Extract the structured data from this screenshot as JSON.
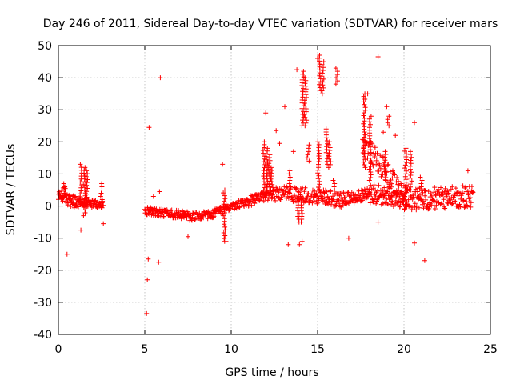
{
  "colors": {
    "series": "#ff0000",
    "axis": "#000000",
    "grid": "#a0a0a0",
    "background": "#ffffff"
  },
  "chart_data": {
    "type": "scatter",
    "title": "Day 246 of 2011, Sidereal Day-to-day VTEC variation (SDTVAR) for receiver mars",
    "xlabel": "GPS time / hours",
    "ylabel": "SDTVAR / TECUs",
    "xlim": [
      0,
      25
    ],
    "ylim": [
      -40,
      50
    ],
    "xticks": [
      0,
      5,
      10,
      15,
      20,
      25
    ],
    "yticks": [
      -40,
      -30,
      -20,
      -10,
      0,
      10,
      20,
      30,
      40,
      50
    ],
    "grid": true,
    "marker": "plus",
    "series": [
      {
        "name": "SDTVAR",
        "bands": [
          {
            "x": [
              0.0,
              0.4
            ],
            "center": [
              2.5,
              3.5
            ],
            "spread": 2.5,
            "n": 20
          },
          {
            "x": [
              0.4,
              1.2
            ],
            "center": [
              2.0,
              1.0
            ],
            "spread": 2.0,
            "n": 40
          },
          {
            "x": [
              1.2,
              2.6
            ],
            "center": [
              1.0,
              0.5
            ],
            "spread": 1.2,
            "n": 60
          },
          {
            "x": [
              5.0,
              7.5
            ],
            "center": [
              -1.5,
              -3.0
            ],
            "spread": 1.3,
            "n": 110
          },
          {
            "x": [
              7.5,
              9.0
            ],
            "center": [
              -3.5,
              -2.5
            ],
            "spread": 1.2,
            "n": 60
          },
          {
            "x": [
              9.0,
              11.0
            ],
            "center": [
              -2.0,
              1.5
            ],
            "spread": 1.2,
            "n": 80
          },
          {
            "x": [
              11.0,
              12.5
            ],
            "center": [
              1.5,
              4.0
            ],
            "spread": 1.6,
            "n": 60
          },
          {
            "x": [
              12.5,
              14.8
            ],
            "center": [
              4.0,
              3.0
            ],
            "spread": 2.5,
            "n": 90
          },
          {
            "x": [
              14.8,
              16.5
            ],
            "center": [
              3.0,
              2.0
            ],
            "spread": 2.5,
            "n": 70
          },
          {
            "x": [
              16.5,
              18.0
            ],
            "center": [
              2.0,
              4.0
            ],
            "spread": 2.0,
            "n": 60
          },
          {
            "x": [
              18.0,
              20.0
            ],
            "center": [
              4.0,
              2.0
            ],
            "spread": 3.0,
            "n": 90
          },
          {
            "x": [
              20.0,
              24.0
            ],
            "center": [
              2.0,
              3.0
            ],
            "spread": 3.5,
            "n": 170
          }
        ],
        "spikes": [
          {
            "x": 0.35,
            "y": [
              3,
              7
            ]
          },
          {
            "x": 1.3,
            "y": [
              2,
              13
            ]
          },
          {
            "x": 1.5,
            "y": [
              -3,
              12
            ]
          },
          {
            "x": 1.65,
            "y": [
              0,
              11
            ]
          },
          {
            "x": 2.5,
            "y": [
              1,
              7
            ]
          },
          {
            "x": 9.6,
            "y": [
              -11,
              5
            ]
          },
          {
            "x": 11.9,
            "y": [
              4,
              20
            ]
          },
          {
            "x": 12.05,
            "y": [
              5,
              18
            ]
          },
          {
            "x": 12.2,
            "y": [
              6,
              16
            ]
          },
          {
            "x": 12.35,
            "y": [
              4,
              12
            ]
          },
          {
            "x": 13.4,
            "y": [
              4,
              11
            ]
          },
          {
            "x": 13.9,
            "y": [
              -5,
              3
            ]
          },
          {
            "x": 14.05,
            "y": [
              -5,
              3
            ]
          },
          {
            "x": 14.15,
            "y": [
              25,
              42
            ]
          },
          {
            "x": 14.3,
            "y": [
              25,
              40
            ]
          },
          {
            "x": 14.45,
            "y": [
              14,
              19
            ]
          },
          {
            "x": 15.05,
            "y": [
              5,
              20
            ]
          },
          {
            "x": 15.15,
            "y": [
              36,
              47
            ]
          },
          {
            "x": 15.3,
            "y": [
              35,
              45
            ]
          },
          {
            "x": 15.55,
            "y": [
              13,
              24
            ]
          },
          {
            "x": 15.7,
            "y": [
              12,
              20
            ]
          },
          {
            "x": 15.95,
            "y": [
              5,
              8
            ]
          },
          {
            "x": 16.1,
            "y": [
              38,
              43
            ]
          },
          {
            "x": 17.7,
            "y": [
              12,
              35
            ]
          },
          {
            "x": 18.05,
            "y": [
              8,
              28
            ]
          },
          {
            "x": 18.9,
            "y": [
              8,
              17
            ]
          },
          {
            "x": 19.1,
            "y": [
              25,
              28
            ]
          },
          {
            "x": 20.1,
            "y": [
              3,
              18
            ]
          },
          {
            "x": 20.4,
            "y": [
              5,
              17
            ]
          },
          {
            "x": 21.0,
            "y": [
              6,
              9
            ]
          }
        ],
        "fan": {
          "x0": 17.6,
          "y0": 20,
          "x1": 20.2,
          "y1": 2,
          "spread": 3.5,
          "n": 90
        },
        "outliers": [
          {
            "x": 0.5,
            "y": -15
          },
          {
            "x": 1.3,
            "y": -7.5
          },
          {
            "x": 2.6,
            "y": -5.5
          },
          {
            "x": 5.1,
            "y": -33.5
          },
          {
            "x": 5.15,
            "y": -23
          },
          {
            "x": 5.2,
            "y": -16.5
          },
          {
            "x": 5.25,
            "y": 24.5
          },
          {
            "x": 5.5,
            "y": 3
          },
          {
            "x": 5.8,
            "y": -17.5
          },
          {
            "x": 5.9,
            "y": 40
          },
          {
            "x": 5.85,
            "y": 4.5
          },
          {
            "x": 7.5,
            "y": -9.5
          },
          {
            "x": 9.5,
            "y": 13
          },
          {
            "x": 9.7,
            "y": -11
          },
          {
            "x": 12.0,
            "y": 29
          },
          {
            "x": 12.6,
            "y": 23.5
          },
          {
            "x": 12.8,
            "y": 19.5
          },
          {
            "x": 13.1,
            "y": 31
          },
          {
            "x": 13.3,
            "y": -12
          },
          {
            "x": 13.6,
            "y": 17
          },
          {
            "x": 13.8,
            "y": 42.5
          },
          {
            "x": 13.95,
            "y": -12
          },
          {
            "x": 14.1,
            "y": -11
          },
          {
            "x": 15.0,
            "y": 46
          },
          {
            "x": 16.8,
            "y": -10
          },
          {
            "x": 17.9,
            "y": 35
          },
          {
            "x": 18.5,
            "y": 46.5
          },
          {
            "x": 18.5,
            "y": -5
          },
          {
            "x": 18.8,
            "y": 23
          },
          {
            "x": 19.0,
            "y": 31
          },
          {
            "x": 19.5,
            "y": 22
          },
          {
            "x": 20.6,
            "y": 26
          },
          {
            "x": 20.6,
            "y": -11.5
          },
          {
            "x": 21.2,
            "y": -17
          },
          {
            "x": 23.7,
            "y": 11
          }
        ]
      }
    ]
  }
}
